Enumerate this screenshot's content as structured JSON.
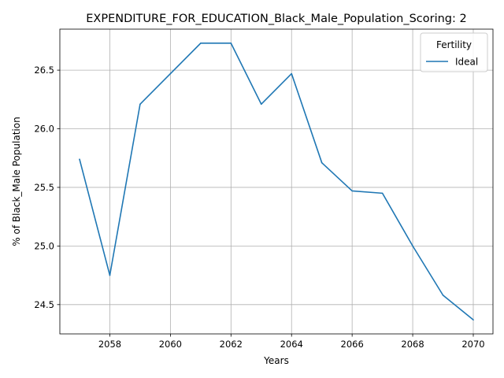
{
  "chart_data": {
    "type": "line",
    "title": "EXPENDITURE_FOR_EDUCATION_Black_Male_Population_Scoring: 2",
    "xlabel": "Years",
    "ylabel": "% of Black_Male Population",
    "xlim": [
      2056.35,
      2070.65
    ],
    "ylim": [
      24.25,
      26.85
    ],
    "x_ticks": [
      2058,
      2060,
      2062,
      2064,
      2066,
      2068,
      2070
    ],
    "y_ticks": [
      24.5,
      25.0,
      25.5,
      26.0,
      26.5
    ],
    "y_tick_labels": [
      "24.5",
      "25.0",
      "25.5",
      "26.0",
      "26.5"
    ],
    "grid": true,
    "legend": {
      "title": "Fertility",
      "placement": "upper right"
    },
    "series": [
      {
        "name": "Ideal",
        "color": "#1f77b4",
        "x": [
          2057,
          2058,
          2059,
          2060,
          2061,
          2062,
          2063,
          2064,
          2065,
          2066,
          2067,
          2068,
          2069,
          2070
        ],
        "y": [
          25.74,
          24.75,
          26.21,
          26.47,
          26.73,
          26.73,
          26.21,
          26.47,
          25.71,
          25.47,
          25.45,
          25.0,
          24.58,
          24.37
        ]
      }
    ]
  }
}
